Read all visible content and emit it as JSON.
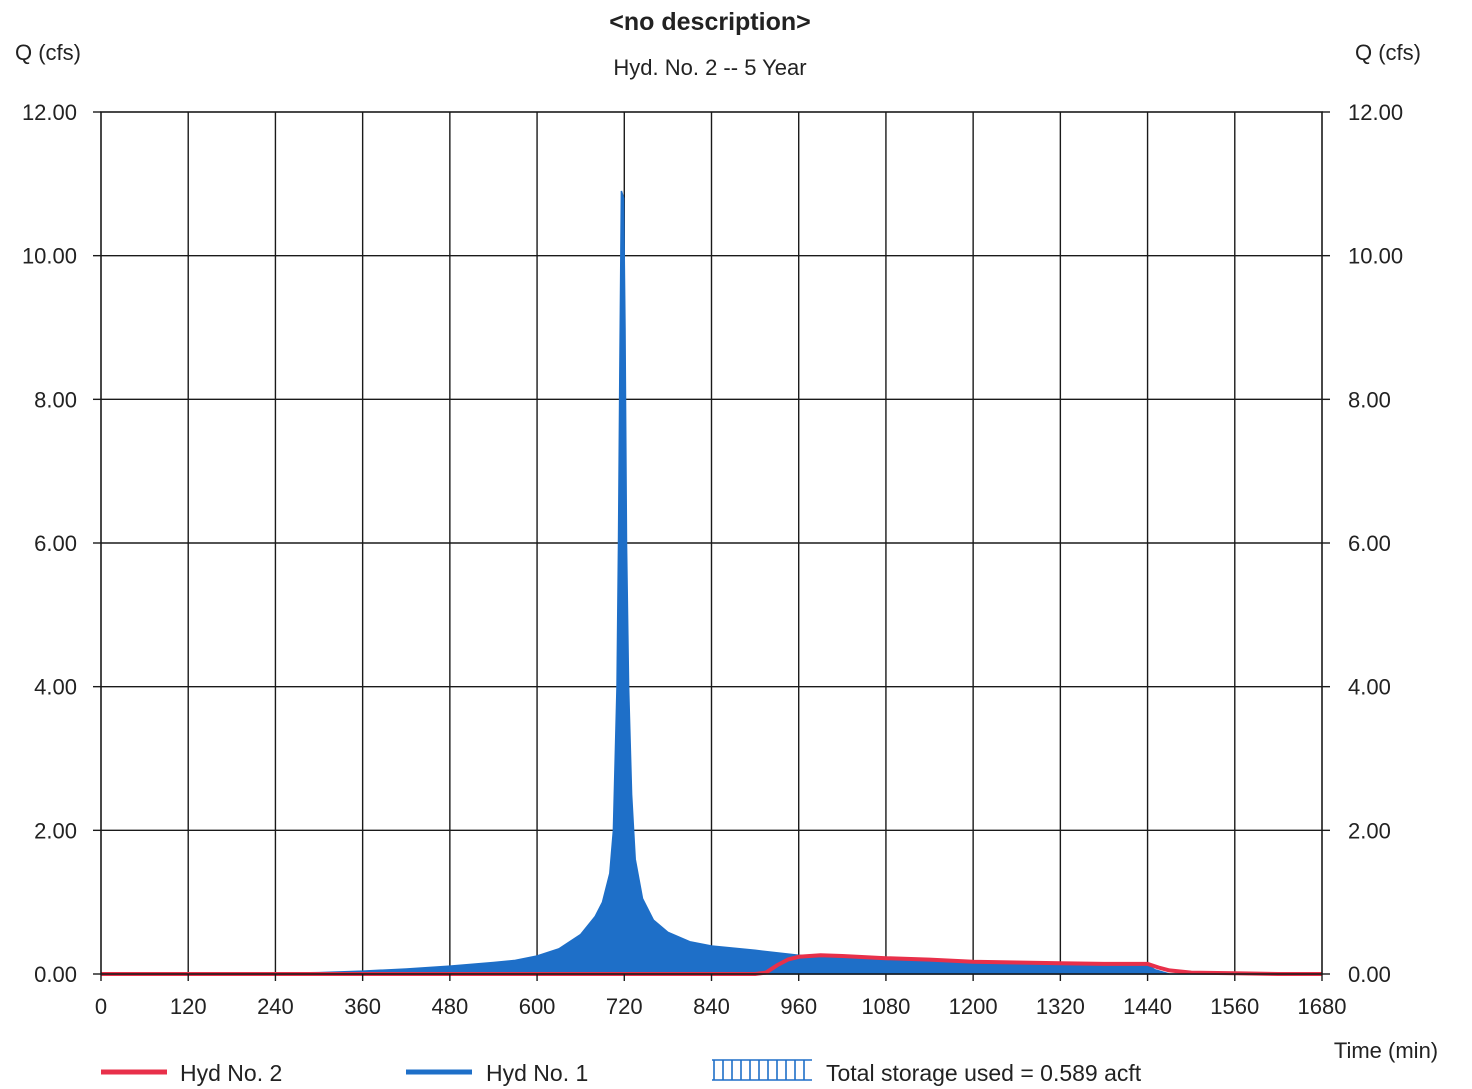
{
  "chart_data": {
    "type": "area",
    "title": "<no description>",
    "subtitle": "Hyd. No. 2 -- 5 Year",
    "ylabel_left": "Q (cfs)",
    "ylabel_right": "Q (cfs)",
    "xlabel": "Time (min)",
    "xlim": [
      0,
      1680
    ],
    "ylim": [
      0,
      12
    ],
    "x_ticks": [
      0,
      120,
      240,
      360,
      480,
      600,
      720,
      840,
      960,
      1080,
      1200,
      1320,
      1440,
      1560,
      1680
    ],
    "y_ticks": [
      0,
      2,
      4,
      6,
      8,
      10,
      12
    ],
    "y_tick_labels": [
      "0.00",
      "2.00",
      "4.00",
      "6.00",
      "8.00",
      "10.00",
      "12.00"
    ],
    "grid": true,
    "legend_position": "bottom",
    "series": [
      {
        "name": "Hyd No. 2",
        "style": "line",
        "color": "#e8304a",
        "points": [
          [
            0,
            0
          ],
          [
            120,
            0
          ],
          [
            240,
            0
          ],
          [
            360,
            0
          ],
          [
            480,
            0
          ],
          [
            600,
            0
          ],
          [
            720,
            0
          ],
          [
            840,
            0
          ],
          [
            900,
            0
          ],
          [
            915,
            0.02
          ],
          [
            930,
            0.12
          ],
          [
            945,
            0.2
          ],
          [
            960,
            0.24
          ],
          [
            990,
            0.26
          ],
          [
            1020,
            0.25
          ],
          [
            1080,
            0.22
          ],
          [
            1140,
            0.2
          ],
          [
            1200,
            0.17
          ],
          [
            1260,
            0.16
          ],
          [
            1320,
            0.15
          ],
          [
            1380,
            0.14
          ],
          [
            1440,
            0.14
          ],
          [
            1455,
            0.09
          ],
          [
            1470,
            0.05
          ],
          [
            1500,
            0.02
          ],
          [
            1560,
            0.01
          ],
          [
            1620,
            0
          ],
          [
            1680,
            0
          ]
        ]
      },
      {
        "name": "Hyd No. 1",
        "style": "filled-area",
        "color": "#1e6fc8",
        "points": [
          [
            0,
            0
          ],
          [
            120,
            0
          ],
          [
            240,
            0.01
          ],
          [
            300,
            0.02
          ],
          [
            360,
            0.04
          ],
          [
            420,
            0.07
          ],
          [
            480,
            0.11
          ],
          [
            540,
            0.16
          ],
          [
            570,
            0.19
          ],
          [
            600,
            0.25
          ],
          [
            630,
            0.35
          ],
          [
            660,
            0.55
          ],
          [
            680,
            0.8
          ],
          [
            690,
            1.0
          ],
          [
            700,
            1.4
          ],
          [
            705,
            2.0
          ],
          [
            710,
            4.0
          ],
          [
            712,
            6.0
          ],
          [
            714,
            8.5
          ],
          [
            716,
            10.9
          ],
          [
            719,
            10.8
          ],
          [
            721,
            9.0
          ],
          [
            723,
            6.0
          ],
          [
            726,
            4.0
          ],
          [
            730,
            2.5
          ],
          [
            735,
            1.6
          ],
          [
            745,
            1.05
          ],
          [
            760,
            0.75
          ],
          [
            780,
            0.58
          ],
          [
            810,
            0.45
          ],
          [
            840,
            0.39
          ],
          [
            900,
            0.33
          ],
          [
            960,
            0.26
          ],
          [
            1020,
            0.23
          ],
          [
            1080,
            0.2
          ],
          [
            1140,
            0.18
          ],
          [
            1200,
            0.16
          ],
          [
            1260,
            0.15
          ],
          [
            1320,
            0.14
          ],
          [
            1380,
            0.13
          ],
          [
            1440,
            0.13
          ],
          [
            1450,
            0.06
          ],
          [
            1470,
            0.0
          ],
          [
            1560,
            0
          ],
          [
            1680,
            0
          ]
        ]
      }
    ],
    "legend": [
      {
        "label": "Hyd No. 2",
        "color": "#e8304a",
        "marker": "line"
      },
      {
        "label": "Hyd No. 1",
        "color": "#1e6fc8",
        "marker": "line"
      },
      {
        "label": "Total storage used = 0.589 acft",
        "color": "#1e6fc8",
        "marker": "hatch"
      }
    ]
  }
}
